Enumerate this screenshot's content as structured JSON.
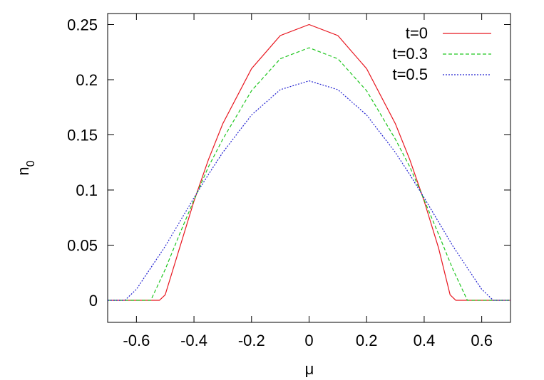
{
  "chart_data": {
    "type": "line",
    "title": "",
    "xlabel": "μ",
    "ylabel": "n",
    "ylabel_subscript": "0",
    "xlim": [
      -0.7,
      0.7
    ],
    "ylim": [
      -0.02,
      0.26
    ],
    "xticks": [
      -0.6,
      -0.4,
      -0.2,
      0,
      0.2,
      0.4,
      0.6
    ],
    "xtick_labels": [
      "-0.6",
      "-0.4",
      "-0.2",
      "0",
      "0.2",
      "0.4",
      "0.6"
    ],
    "yticks": [
      0,
      0.05,
      0.1,
      0.15,
      0.2,
      0.25
    ],
    "ytick_labels": [
      "0",
      "0.05",
      "0.1",
      "0.15",
      "0.2",
      "0.25"
    ],
    "grid": false,
    "legend_position": "top-right",
    "series": [
      {
        "name": "t=0",
        "color": "#e8161f",
        "dash": "solid",
        "x": [
          -0.7,
          -0.52,
          -0.5,
          -0.45,
          -0.4,
          -0.35,
          -0.3,
          -0.2,
          -0.1,
          0,
          0.1,
          0.2,
          0.3,
          0.35,
          0.4,
          0.45,
          0.49,
          0.51,
          0.7
        ],
        "y": [
          0,
          0,
          0.005,
          0.0475,
          0.09,
          0.1275,
          0.16,
          0.21,
          0.24,
          0.25,
          0.24,
          0.21,
          0.16,
          0.1275,
          0.09,
          0.0475,
          0.005,
          0,
          0
        ]
      },
      {
        "name": "t=0.3",
        "color": "#1fc61f",
        "dash": "dashed",
        "x": [
          -0.7,
          -0.55,
          -0.5,
          -0.45,
          -0.4,
          -0.35,
          -0.3,
          -0.2,
          -0.1,
          0,
          0.1,
          0.2,
          0.3,
          0.35,
          0.4,
          0.45,
          0.5,
          0.55,
          0.7
        ],
        "y": [
          0,
          0,
          0.028,
          0.06,
          0.091,
          0.121,
          0.146,
          0.19,
          0.219,
          0.229,
          0.219,
          0.19,
          0.146,
          0.121,
          0.091,
          0.06,
          0.028,
          0,
          0
        ]
      },
      {
        "name": "t=0.5",
        "color": "#2020d0",
        "dash": "dotted",
        "x": [
          -0.7,
          -0.64,
          -0.6,
          -0.5,
          -0.4,
          -0.35,
          -0.3,
          -0.2,
          -0.1,
          0,
          0.1,
          0.2,
          0.3,
          0.35,
          0.4,
          0.5,
          0.6,
          0.64,
          0.7
        ],
        "y": [
          0,
          0,
          0.01,
          0.049,
          0.093,
          0.114,
          0.134,
          0.168,
          0.191,
          0.199,
          0.191,
          0.168,
          0.134,
          0.114,
          0.093,
          0.049,
          0.01,
          0,
          0
        ]
      }
    ]
  }
}
